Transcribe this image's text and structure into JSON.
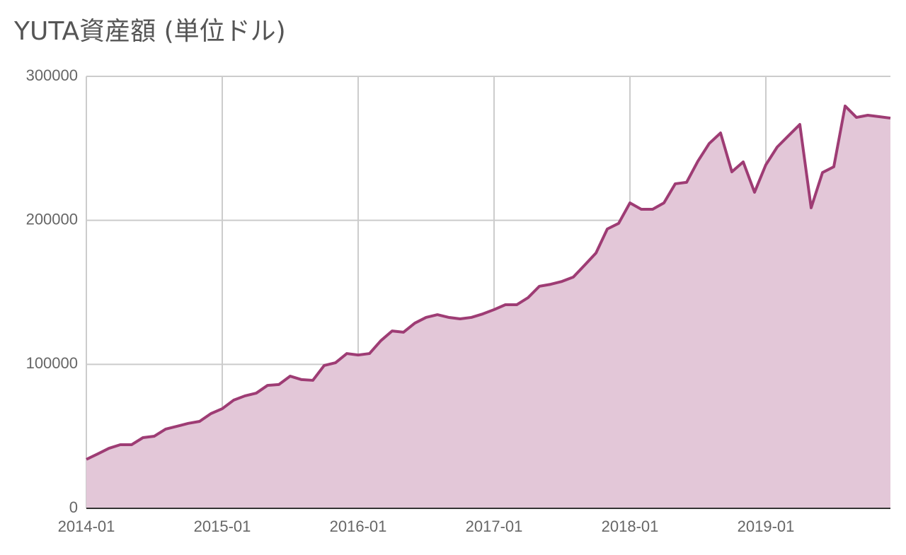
{
  "chart_data": {
    "type": "area",
    "title": "YUTA資産額 (単位ドル)",
    "x": [
      "2014-01",
      "2014-02",
      "2014-03",
      "2014-04",
      "2014-05",
      "2014-06",
      "2014-07",
      "2014-08",
      "2014-09",
      "2014-10",
      "2014-11",
      "2014-12",
      "2015-01",
      "2015-02",
      "2015-03",
      "2015-04",
      "2015-05",
      "2015-06",
      "2015-07",
      "2015-08",
      "2015-09",
      "2015-10",
      "2015-11",
      "2015-12",
      "2016-01",
      "2016-02",
      "2016-03",
      "2016-04",
      "2016-05",
      "2016-06",
      "2016-07",
      "2016-08",
      "2016-09",
      "2016-10",
      "2016-11",
      "2016-12",
      "2017-01",
      "2017-02",
      "2017-03",
      "2017-04",
      "2017-05",
      "2017-06",
      "2017-07",
      "2017-08",
      "2017-09",
      "2017-10",
      "2017-11",
      "2017-12",
      "2018-01",
      "2018-02",
      "2018-03",
      "2018-04",
      "2018-05",
      "2018-06",
      "2018-07",
      "2018-08",
      "2018-09",
      "2018-10",
      "2018-11",
      "2018-12",
      "2019-01",
      "2019-02",
      "2019-03",
      "2019-04",
      "2019-05",
      "2019-06",
      "2019-07",
      "2019-08",
      "2019-09",
      "2019-10",
      "2019-11",
      "2019-12"
    ],
    "series": [
      {
        "color": "#9e3c74",
        "fill": "#e3c7d8",
        "values": [
          34000,
          37800,
          41700,
          44200,
          44200,
          49100,
          50100,
          55000,
          57000,
          59000,
          60400,
          65800,
          69200,
          75100,
          78100,
          80000,
          85400,
          86000,
          91800,
          89400,
          88900,
          99200,
          101100,
          107500,
          106500,
          107500,
          116400,
          123200,
          122300,
          128600,
          132600,
          134500,
          132600,
          131600,
          132600,
          135000,
          138000,
          141400,
          141400,
          146300,
          154200,
          155600,
          157600,
          160600,
          168900,
          177300,
          194000,
          197900,
          212100,
          207700,
          207700,
          212100,
          225400,
          226400,
          241100,
          253400,
          260700,
          233700,
          240600,
          219500,
          238600,
          250900,
          258800,
          266600,
          208700,
          233200,
          237200,
          279400,
          271500,
          273000,
          272000,
          271000
        ]
      }
    ],
    "xlim": [
      "2014-01",
      "2019-12"
    ],
    "xticks": [
      "2014-01",
      "2015-01",
      "2016-01",
      "2017-01",
      "2018-01",
      "2019-01"
    ],
    "ylim": [
      0,
      300000
    ],
    "yticks": [
      0,
      100000,
      200000,
      300000
    ],
    "grid": true
  }
}
